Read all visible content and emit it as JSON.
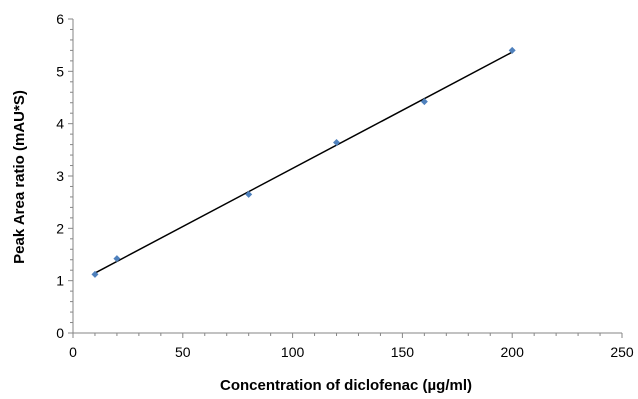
{
  "chart_data": {
    "type": "scatter",
    "xlabel": "Concentration of diclofenac (µg/ml)",
    "ylabel": "Peak Area ratio (mAU*S)",
    "xlim": [
      0,
      250
    ],
    "ylim": [
      0,
      6
    ],
    "x_ticks": [
      0,
      50,
      100,
      150,
      200,
      250
    ],
    "y_ticks": [
      0,
      1,
      2,
      3,
      4,
      5,
      6
    ],
    "grid": false,
    "legend": "none",
    "series": [
      {
        "x": [
          10,
          20,
          80,
          120,
          160,
          200
        ],
        "y": [
          1.12,
          1.42,
          2.65,
          3.64,
          4.42,
          5.4
        ],
        "marker": "diamond",
        "color": "#4f81bd"
      }
    ],
    "trendline": {
      "type": "linear",
      "x_range": [
        10,
        200
      ],
      "color": "#000000"
    }
  }
}
